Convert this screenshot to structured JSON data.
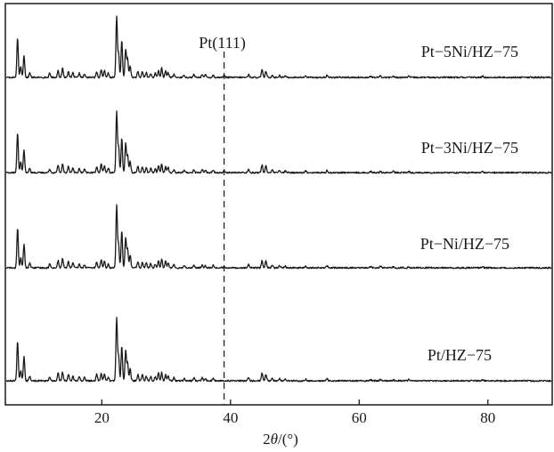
{
  "chart_data": {
    "type": "line",
    "title": "",
    "xlabel": "2θ/(°)",
    "ylabel": "",
    "xlim": [
      5,
      90
    ],
    "xticks": [
      20,
      40,
      60,
      80
    ],
    "grid": false,
    "legend": "none",
    "annotation": {
      "label": "Pt(111)",
      "x": 39,
      "style": "dashed"
    },
    "colors": {
      "line": "#1a1a1a",
      "axis": "#1a1a1a"
    },
    "peaks": [
      {
        "x": 6.9,
        "h": 1.0
      },
      {
        "x": 7.4,
        "h": 0.25
      },
      {
        "x": 7.9,
        "h": 0.55
      },
      {
        "x": 8.8,
        "h": 0.12
      },
      {
        "x": 11.9,
        "h": 0.1
      },
      {
        "x": 13.2,
        "h": 0.18
      },
      {
        "x": 13.9,
        "h": 0.22
      },
      {
        "x": 14.8,
        "h": 0.16
      },
      {
        "x": 15.5,
        "h": 0.12
      },
      {
        "x": 16.5,
        "h": 0.1
      },
      {
        "x": 17.3,
        "h": 0.08
      },
      {
        "x": 19.2,
        "h": 0.15
      },
      {
        "x": 19.9,
        "h": 0.2
      },
      {
        "x": 20.4,
        "h": 0.18
      },
      {
        "x": 21.0,
        "h": 0.1
      },
      {
        "x": 22.3,
        "h": 1.5
      },
      {
        "x": 22.6,
        "h": 0.6
      },
      {
        "x": 23.1,
        "h": 0.9
      },
      {
        "x": 23.7,
        "h": 0.7
      },
      {
        "x": 24.0,
        "h": 0.45
      },
      {
        "x": 24.4,
        "h": 0.3
      },
      {
        "x": 25.6,
        "h": 0.15
      },
      {
        "x": 26.3,
        "h": 0.14
      },
      {
        "x": 26.9,
        "h": 0.12
      },
      {
        "x": 27.6,
        "h": 0.1
      },
      {
        "x": 28.3,
        "h": 0.1
      },
      {
        "x": 28.8,
        "h": 0.18
      },
      {
        "x": 29.3,
        "h": 0.22
      },
      {
        "x": 29.9,
        "h": 0.16
      },
      {
        "x": 30.3,
        "h": 0.12
      },
      {
        "x": 31.2,
        "h": 0.08
      },
      {
        "x": 32.8,
        "h": 0.06
      },
      {
        "x": 34.3,
        "h": 0.07
      },
      {
        "x": 35.6,
        "h": 0.08
      },
      {
        "x": 36.1,
        "h": 0.06
      },
      {
        "x": 37.3,
        "h": 0.06
      },
      {
        "x": 42.8,
        "h": 0.08
      },
      {
        "x": 44.9,
        "h": 0.2
      },
      {
        "x": 45.5,
        "h": 0.16
      },
      {
        "x": 46.5,
        "h": 0.06
      },
      {
        "x": 47.6,
        "h": 0.05
      },
      {
        "x": 48.5,
        "h": 0.04
      },
      {
        "x": 51.7,
        "h": 0.04
      },
      {
        "x": 55.0,
        "h": 0.05
      },
      {
        "x": 61.8,
        "h": 0.03
      },
      {
        "x": 63.3,
        "h": 0.04
      },
      {
        "x": 65.3,
        "h": 0.03
      },
      {
        "x": 67.7,
        "h": 0.03
      },
      {
        "x": 79.2,
        "h": 0.03
      }
    ],
    "series": [
      {
        "name": "Pt−5Ni/HZ−75",
        "baseline_order": 0,
        "pt_peak_h": 0.06
      },
      {
        "name": "Pt−3Ni/HZ−75",
        "baseline_order": 1,
        "pt_peak_h": 0.05
      },
      {
        "name": "Pt−Ni/HZ−75",
        "baseline_order": 2,
        "pt_peak_h": 0.04
      },
      {
        "name": "Pt/HZ−75",
        "baseline_order": 3,
        "pt_peak_h": 0.0
      }
    ]
  }
}
